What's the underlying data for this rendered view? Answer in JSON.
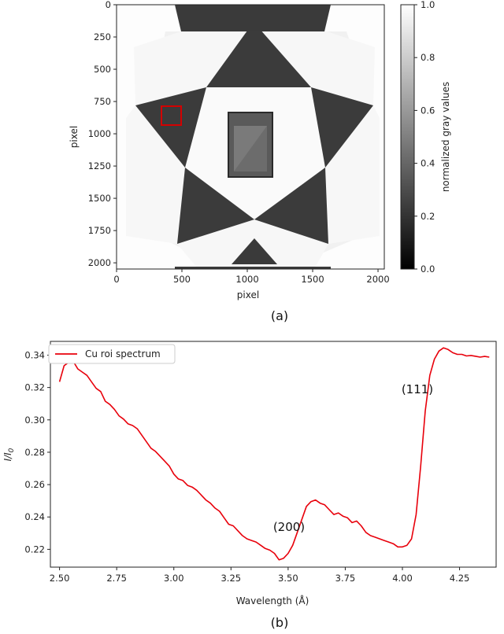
{
  "chart_data": [
    {
      "type": "heatmap",
      "panel_label": "(a)",
      "xlabel": "pixel",
      "ylabel": "pixel",
      "xlim": [
        0,
        2048
      ],
      "ylim": [
        2048,
        0
      ],
      "x_ticks": [
        "0",
        "500",
        "1000",
        "1500",
        "2000"
      ],
      "y_ticks": [
        "0",
        "250",
        "500",
        "750",
        "1000",
        "1250",
        "1500",
        "1750",
        "2000"
      ],
      "colorbar": {
        "label": "normalized gray values",
        "range": [
          0.0,
          1.0
        ],
        "ticks": [
          "0.0",
          "0.2",
          "0.4",
          "0.6",
          "0.8",
          "1.0"
        ],
        "colormap": "gray"
      },
      "roi_color": "#d40000"
    },
    {
      "type": "line",
      "panel_label": "(b)",
      "xlabel": "Wavelength (Å)",
      "ylabel": "I/I0",
      "xlim": [
        2.46,
        4.41
      ],
      "ylim": [
        0.209,
        0.3485
      ],
      "grid": false,
      "legend_position": "top-left",
      "x_ticks": [
        "2.50",
        "2.75",
        "3.00",
        "3.25",
        "3.50",
        "3.75",
        "4.00",
        "4.25"
      ],
      "y_ticks": [
        "0.22",
        "0.24",
        "0.26",
        "0.28",
        "0.30",
        "0.32",
        "0.34"
      ],
      "annotations": [
        "(200)",
        "(111)"
      ],
      "series": [
        {
          "name": "Cu roi spectrum",
          "color": "#e8000b",
          "x": [
            2.5,
            2.52,
            2.54,
            2.56,
            2.58,
            2.6,
            2.62,
            2.64,
            2.66,
            2.68,
            2.7,
            2.72,
            2.74,
            2.76,
            2.78,
            2.8,
            2.82,
            2.84,
            2.86,
            2.88,
            2.9,
            2.92,
            2.94,
            2.96,
            2.98,
            3.0,
            3.02,
            3.04,
            3.06,
            3.08,
            3.1,
            3.12,
            3.14,
            3.16,
            3.18,
            3.2,
            3.22,
            3.24,
            3.26,
            3.28,
            3.3,
            3.32,
            3.34,
            3.36,
            3.38,
            3.4,
            3.42,
            3.44,
            3.46,
            3.48,
            3.5,
            3.52,
            3.54,
            3.56,
            3.58,
            3.6,
            3.62,
            3.64,
            3.66,
            3.68,
            3.7,
            3.72,
            3.74,
            3.76,
            3.78,
            3.8,
            3.82,
            3.84,
            3.86,
            3.88,
            3.9,
            3.92,
            3.94,
            3.96,
            3.98,
            4.0,
            4.02,
            4.04,
            4.06,
            4.08,
            4.1,
            4.12,
            4.14,
            4.16,
            4.18,
            4.2,
            4.22,
            4.24,
            4.26,
            4.28,
            4.3,
            4.32,
            4.34,
            4.36,
            4.38
          ],
          "values": [
            0.3235,
            0.3335,
            0.3355,
            0.3362,
            0.3315,
            0.3295,
            0.3275,
            0.3235,
            0.3195,
            0.3175,
            0.3115,
            0.3095,
            0.3065,
            0.3025,
            0.3005,
            0.2975,
            0.2965,
            0.2945,
            0.2905,
            0.2865,
            0.2825,
            0.2805,
            0.2775,
            0.2745,
            0.2715,
            0.2665,
            0.2635,
            0.2625,
            0.2595,
            0.2585,
            0.2565,
            0.2535,
            0.2505,
            0.2485,
            0.2455,
            0.2435,
            0.2395,
            0.2355,
            0.2345,
            0.2315,
            0.2285,
            0.2265,
            0.2255,
            0.2245,
            0.2225,
            0.2205,
            0.2195,
            0.2175,
            0.2135,
            0.2145,
            0.2175,
            0.2225,
            0.2305,
            0.2385,
            0.2465,
            0.2495,
            0.2505,
            0.2485,
            0.2475,
            0.2445,
            0.2415,
            0.2425,
            0.2405,
            0.2395,
            0.2365,
            0.2375,
            0.2345,
            0.2305,
            0.2285,
            0.2275,
            0.2265,
            0.2255,
            0.2245,
            0.2235,
            0.2215,
            0.2215,
            0.2225,
            0.2265,
            0.2415,
            0.2715,
            0.3055,
            0.3275,
            0.3375,
            0.3425,
            0.3445,
            0.3435,
            0.3415,
            0.3405,
            0.3405,
            0.3395,
            0.3398,
            0.3393,
            0.3388,
            0.3392,
            0.3388
          ]
        }
      ]
    }
  ]
}
